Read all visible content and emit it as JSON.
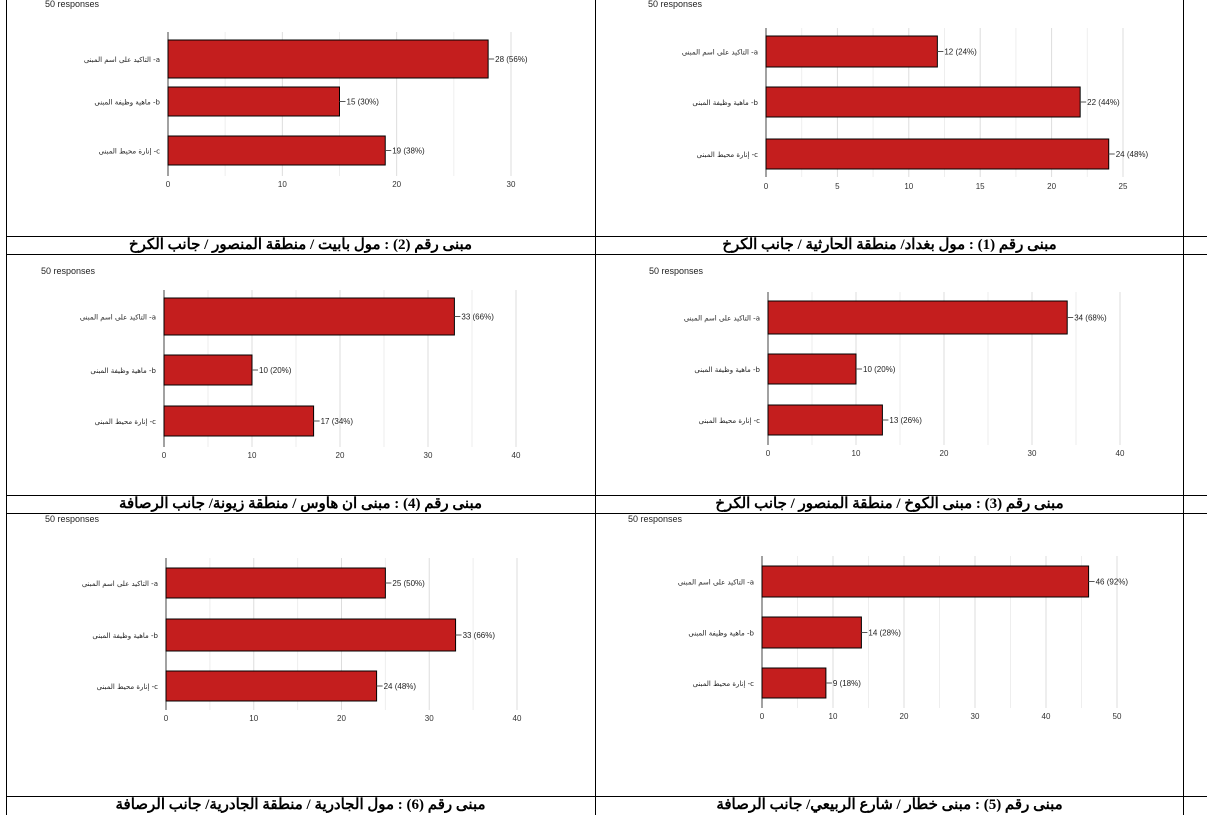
{
  "charts": [
    {
      "caption": "مبنى رقم (2) : مول بابيت / منطقة المنصور / جانب الكرخ",
      "responses": "50 responses",
      "chart_data": {
        "type": "bar",
        "orientation": "horizontal",
        "categories": [
          "التاكيد على اسم المبنى -a",
          "ماهية وظيفة المبنى -b",
          "إنارة محيط المبنى -c"
        ],
        "values": [
          28,
          15,
          19
        ],
        "data_labels": [
          "28 (56%)",
          "15 (30%)",
          "19 (38%)"
        ],
        "xlim": [
          0,
          30
        ],
        "ticks": [
          "0",
          "10",
          "20",
          "30"
        ],
        "bar_color": "#c41e1e",
        "grid": true
      }
    },
    {
      "caption": "مبنى رقم (1) : مول بغداد/ منطقة الحارثية / جانب الكرخ",
      "responses": "50 responses",
      "chart_data": {
        "type": "bar",
        "orientation": "horizontal",
        "categories": [
          "التاكيد على اسم المبنى -a",
          "ماهية وظيفة المبنى -b",
          "إنارة محيط المبنى -c"
        ],
        "values": [
          12,
          22,
          24
        ],
        "data_labels": [
          "12 (24%)",
          "22 (44%)",
          "24 (48%)"
        ],
        "xlim": [
          0,
          25
        ],
        "ticks": [
          "0",
          "5",
          "10",
          "15",
          "20",
          "25"
        ],
        "bar_color": "#c41e1e",
        "grid": true
      }
    },
    {
      "caption": "مبنى رقم (4) : مبنى ان هاوس / منطقة زيونة/ جانب الرصافة",
      "responses": "50 responses",
      "chart_data": {
        "type": "bar",
        "orientation": "horizontal",
        "categories": [
          "التاكيد على اسم المبنى -a",
          "ماهية وظيفة المبنى -b",
          "إنارة محيط المبنى -c"
        ],
        "values": [
          33,
          10,
          17
        ],
        "data_labels": [
          "33 (66%)",
          "10 (20%)",
          "17 (34%)"
        ],
        "xlim": [
          0,
          40
        ],
        "ticks": [
          "0",
          "10",
          "20",
          "30",
          "40"
        ],
        "bar_color": "#c41e1e",
        "grid": true
      }
    },
    {
      "caption": "مبنى رقم (3) : مبنى الكوخ / منطقة المنصور / جانب الكرخ",
      "responses": "50 responses",
      "chart_data": {
        "type": "bar",
        "orientation": "horizontal",
        "categories": [
          "التاكيد على اسم المبنى -a",
          "ماهية وظيفة المبنى -b",
          "إنارة محيط المبنى -c"
        ],
        "values": [
          34,
          10,
          13
        ],
        "data_labels": [
          "34 (68%)",
          "10 (20%)",
          "13 (26%)"
        ],
        "xlim": [
          0,
          40
        ],
        "ticks": [
          "0",
          "10",
          "20",
          "30",
          "40"
        ],
        "bar_color": "#c41e1e",
        "grid": true
      }
    },
    {
      "caption": "مبنى رقم (6) : مول الجادرية / منطقة الجادرية/ جانب الرصافة",
      "responses": "50 responses",
      "chart_data": {
        "type": "bar",
        "orientation": "horizontal",
        "categories": [
          "التاكيد على اسم المبنى -a",
          "ماهية وظيفة المبنى -b",
          "إنارة محيط المبنى -c"
        ],
        "values": [
          25,
          33,
          24
        ],
        "data_labels": [
          "25 (50%)",
          "33 (66%)",
          "24 (48%)"
        ],
        "xlim": [
          0,
          40
        ],
        "ticks": [
          "0",
          "10",
          "20",
          "30",
          "40"
        ],
        "bar_color": "#c41e1e",
        "grid": true
      }
    },
    {
      "caption": "مبنى رقم (5) : مبنى خطار / شارع الربيعي/ جانب الرصافة",
      "responses": "50 responses",
      "chart_data": {
        "type": "bar",
        "orientation": "horizontal",
        "categories": [
          "التاكيد على اسم المبنى -a",
          "ماهية وظيفة المبنى -b",
          "إنارة محيط المبنى -c"
        ],
        "values": [
          46,
          14,
          9
        ],
        "data_labels": [
          "46 (92%)",
          "14 (28%)",
          "9 (18%)"
        ],
        "xlim": [
          0,
          50
        ],
        "ticks": [
          "0",
          "10",
          "20",
          "30",
          "40",
          "50"
        ],
        "bar_color": "#c41e1e",
        "grid": true
      }
    }
  ]
}
